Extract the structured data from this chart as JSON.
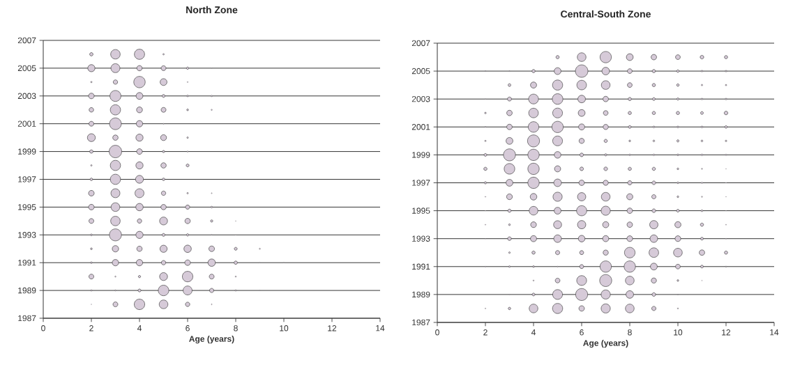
{
  "chart_data": [
    {
      "type": "bubble",
      "title": "North Zone",
      "xlabel": "Age (years)",
      "color": "#d6cad8",
      "marker": "circle",
      "grid": "y",
      "xlim": [
        0,
        14
      ],
      "xticks": [
        0,
        2,
        4,
        6,
        8,
        10,
        12,
        14
      ],
      "ylim": [
        1987,
        2007
      ],
      "yticks": [
        1987,
        1989,
        1991,
        1993,
        1995,
        1997,
        1999,
        2001,
        2003,
        2005,
        2007
      ],
      "x": [
        2,
        3,
        4,
        5,
        2,
        3,
        4,
        5,
        6,
        7,
        2,
        3,
        4,
        5,
        6,
        2,
        3,
        4,
        5,
        6,
        7,
        2,
        3,
        4,
        5,
        6,
        7,
        2,
        3,
        4,
        5,
        2,
        3,
        4,
        5,
        6,
        2,
        3,
        4,
        5,
        6,
        2,
        3,
        4,
        5,
        6,
        2,
        3,
        4,
        5,
        2,
        3,
        4,
        5,
        6,
        7,
        2,
        3,
        4,
        5,
        6,
        7,
        2,
        3,
        4,
        5,
        6,
        7,
        8,
        2,
        3,
        4,
        5,
        6,
        7,
        8,
        2,
        3,
        4,
        5,
        6,
        7,
        8,
        9,
        2,
        3,
        4,
        5,
        6,
        7,
        8,
        9,
        10,
        2,
        3,
        4,
        5,
        6,
        7,
        8,
        2,
        3,
        4,
        5,
        6,
        7,
        8,
        9,
        2,
        3,
        4,
        5,
        6,
        7
      ],
      "values": [
        2006,
        2006,
        2006,
        2006,
        2005,
        2005,
        2005,
        2005,
        2005,
        2005,
        2004,
        2004,
        2004,
        2004,
        2004,
        2003,
        2003,
        2003,
        2003,
        2003,
        2003,
        2002,
        2002,
        2002,
        2002,
        2002,
        2002,
        2001,
        2001,
        2001,
        2001,
        2000,
        2000,
        2000,
        2000,
        2000,
        1999,
        1999,
        1999,
        1999,
        1999,
        1998,
        1998,
        1998,
        1998,
        1998,
        1997,
        1997,
        1997,
        1997,
        1996,
        1996,
        1996,
        1996,
        1996,
        1996,
        1995,
        1995,
        1995,
        1995,
        1995,
        1995,
        1994,
        1994,
        1994,
        1994,
        1994,
        1994,
        1994,
        1993,
        1993,
        1993,
        1993,
        1993,
        1993,
        1993,
        1992,
        1992,
        1992,
        1992,
        1992,
        1992,
        1992,
        1992,
        1991,
        1991,
        1991,
        1991,
        1991,
        1991,
        1991,
        1991,
        1991,
        1990,
        1990,
        1990,
        1990,
        1990,
        1990,
        1990,
        1989,
        1989,
        1989,
        1989,
        1989,
        1989,
        1989,
        1989,
        1988,
        1988,
        1988,
        1988,
        1988,
        1988
      ],
      "sizes": [
        0.087,
        0.59,
        0.68,
        0.02,
        0.35,
        0.53,
        0.2,
        0.17,
        0.045,
        0.005,
        0.02,
        0.14,
        0.84,
        0.32,
        0.009,
        0.22,
        0.78,
        0.32,
        0.067,
        0.027,
        0.02,
        0.15,
        0.68,
        0.24,
        0.17,
        0.031,
        0.014,
        0.17,
        0.89,
        0.28,
        0.009,
        0.42,
        0.2,
        0.35,
        0.24,
        0.023,
        0.087,
        1,
        0.22,
        0.045,
        0.014,
        0.02,
        0.68,
        0.35,
        0.2,
        0.067,
        0.055,
        0.68,
        0.42,
        0.055,
        0.22,
        0.53,
        0.53,
        0.14,
        0.02,
        0.009,
        0.22,
        0.5,
        0.37,
        0.2,
        0.13,
        0.027,
        0.17,
        0.59,
        0.14,
        0.42,
        0.2,
        0.045,
        0.005,
        0.031,
        0.93,
        0.35,
        0.067,
        0.045,
        0.009,
        0.005,
        0.031,
        0.28,
        0.2,
        0.35,
        0.37,
        0.22,
        0.067,
        0.014,
        0.027,
        0.28,
        0.28,
        0.14,
        0.22,
        0.37,
        0.087,
        0.005,
        0.005,
        0.17,
        0.014,
        0.045,
        0.42,
        0.72,
        0.17,
        0.014,
        0.02,
        0.014,
        0.067,
        0.72,
        0.53,
        0.13,
        0.02,
        0.005,
        0.005,
        0.17,
        0.72,
        0.5,
        0.14,
        0.009
      ]
    },
    {
      "type": "bubble",
      "title": "Central-South Zone",
      "xlabel": "Age (years)",
      "color": "#d6cad8",
      "marker": "circle",
      "grid": "y",
      "xlim": [
        0,
        14
      ],
      "xticks": [
        0,
        2,
        4,
        6,
        8,
        10,
        12,
        14
      ],
      "ylim": [
        1987,
        2007
      ],
      "yticks": [
        1987,
        1989,
        1991,
        1993,
        1995,
        1997,
        1999,
        2001,
        2003,
        2005,
        2007
      ],
      "x": [
        5,
        6,
        7,
        8,
        9,
        10,
        11,
        12,
        2,
        3,
        4,
        5,
        6,
        7,
        8,
        9,
        10,
        11,
        12,
        3,
        4,
        5,
        6,
        7,
        8,
        9,
        10,
        11,
        12,
        2,
        3,
        4,
        5,
        6,
        7,
        8,
        9,
        10,
        11,
        12,
        2,
        3,
        4,
        5,
        6,
        7,
        8,
        9,
        10,
        11,
        12,
        2,
        3,
        4,
        5,
        6,
        7,
        8,
        9,
        10,
        11,
        12,
        2,
        3,
        4,
        5,
        6,
        7,
        8,
        9,
        10,
        11,
        12,
        2,
        3,
        4,
        5,
        6,
        7,
        8,
        9,
        10,
        11,
        12,
        2,
        3,
        4,
        5,
        6,
        7,
        8,
        9,
        10,
        11,
        12,
        2,
        3,
        4,
        5,
        6,
        7,
        8,
        9,
        10,
        11,
        12,
        2,
        3,
        4,
        5,
        6,
        7,
        8,
        9,
        10,
        11,
        12,
        2,
        3,
        4,
        5,
        6,
        7,
        8,
        9,
        10,
        11,
        12,
        2,
        3,
        4,
        5,
        6,
        7,
        8,
        9,
        10,
        11,
        12,
        2,
        3,
        4,
        5,
        6,
        7,
        8,
        9,
        10,
        11,
        12,
        3,
        4,
        5,
        6,
        7,
        8,
        9,
        10,
        11,
        12,
        2,
        3,
        4,
        5,
        6,
        7,
        8,
        9,
        10,
        11,
        12,
        4,
        5,
        6,
        7,
        8,
        9,
        10,
        11,
        3,
        4,
        5,
        6,
        7,
        8,
        9,
        10,
        2,
        3,
        4,
        5,
        6,
        7,
        8,
        9,
        10
      ],
      "values": [
        2006,
        2006,
        2006,
        2006,
        2006,
        2006,
        2006,
        2006,
        2005,
        2005,
        2005,
        2005,
        2005,
        2005,
        2005,
        2005,
        2005,
        2005,
        2005,
        2004,
        2004,
        2004,
        2004,
        2004,
        2004,
        2004,
        2004,
        2004,
        2004,
        2003,
        2003,
        2003,
        2003,
        2003,
        2003,
        2003,
        2003,
        2003,
        2003,
        2003,
        2002,
        2002,
        2002,
        2002,
        2002,
        2002,
        2002,
        2002,
        2002,
        2002,
        2002,
        2001,
        2001,
        2001,
        2001,
        2001,
        2001,
        2001,
        2001,
        2001,
        2001,
        2001,
        2000,
        2000,
        2000,
        2000,
        2000,
        2000,
        2000,
        2000,
        2000,
        2000,
        2000,
        1999,
        1999,
        1999,
        1999,
        1999,
        1999,
        1999,
        1999,
        1999,
        1999,
        1999,
        1998,
        1998,
        1998,
        1998,
        1998,
        1998,
        1998,
        1998,
        1998,
        1998,
        1998,
        1997,
        1997,
        1997,
        1997,
        1997,
        1997,
        1997,
        1997,
        1997,
        1997,
        1997,
        1996,
        1996,
        1996,
        1996,
        1996,
        1996,
        1996,
        1996,
        1996,
        1996,
        1996,
        1995,
        1995,
        1995,
        1995,
        1995,
        1995,
        1995,
        1995,
        1995,
        1995,
        1995,
        1994,
        1994,
        1994,
        1994,
        1994,
        1994,
        1994,
        1994,
        1994,
        1994,
        1994,
        1993,
        1993,
        1993,
        1993,
        1993,
        1993,
        1993,
        1993,
        1993,
        1993,
        1993,
        1992,
        1992,
        1992,
        1992,
        1992,
        1992,
        1992,
        1992,
        1992,
        1992,
        1991,
        1991,
        1991,
        1991,
        1991,
        1991,
        1991,
        1991,
        1991,
        1991,
        1991,
        1990,
        1990,
        1990,
        1990,
        1990,
        1990,
        1990,
        1990,
        1989,
        1989,
        1989,
        1989,
        1989,
        1989,
        1989,
        1989,
        1988,
        1988,
        1988,
        1988,
        1988,
        1988,
        1988,
        1988,
        1988
      ],
      "sizes": [
        0.081,
        0.5,
        0.83,
        0.32,
        0.21,
        0.16,
        0.1,
        0.081,
        0.008,
        0.008,
        0.081,
        0.32,
        1,
        0.39,
        0.16,
        0.081,
        0.052,
        0.025,
        0.025,
        0.063,
        0.26,
        0.67,
        0.6,
        0.5,
        0.16,
        0.081,
        0.052,
        0.019,
        0.019,
        0.005,
        0.12,
        0.63,
        0.73,
        0.39,
        0.21,
        0.081,
        0.063,
        0.042,
        0.025,
        0.025,
        0.025,
        0.21,
        0.6,
        0.63,
        0.32,
        0.16,
        0.081,
        0.081,
        0.081,
        0.063,
        0.1,
        0.013,
        0.21,
        0.73,
        0.83,
        0.26,
        0.19,
        0.063,
        0.029,
        0.029,
        0.029,
        0.052,
        0.019,
        0.32,
        0.93,
        0.63,
        0.19,
        0.081,
        0.029,
        0.029,
        0.042,
        0.029,
        0.025,
        0.063,
        0.93,
        0.83,
        0.3,
        0.1,
        0.042,
        0.025,
        0.025,
        0.029,
        0.025,
        0.019,
        0.081,
        0.73,
        0.83,
        0.26,
        0.1,
        0.1,
        0.081,
        0.081,
        0.029,
        0.013,
        0.005,
        0.042,
        0.32,
        0.83,
        0.39,
        0.21,
        0.19,
        0.13,
        0.1,
        0.029,
        0.019,
        0.008,
        0.008,
        0.23,
        0.3,
        0.55,
        0.46,
        0.5,
        0.26,
        0.13,
        0.029,
        0.013,
        0.005,
        0.005,
        0.081,
        0.5,
        0.32,
        0.67,
        0.55,
        0.21,
        0.1,
        0.063,
        0.029,
        0.005,
        0.008,
        0.029,
        0.23,
        0.43,
        0.46,
        0.26,
        0.21,
        0.46,
        0.26,
        0.081,
        0.008,
        0.005,
        0.1,
        0.26,
        0.39,
        0.3,
        0.26,
        0.23,
        0.39,
        0.23,
        0.063,
        0.008,
        0.025,
        0.081,
        0.13,
        0.12,
        0.19,
        0.73,
        0.6,
        0.5,
        0.21,
        0.081,
        0.008,
        0.025,
        0.029,
        0.008,
        0.12,
        0.83,
        0.83,
        0.32,
        0.16,
        0.063,
        0.013,
        0.013,
        0.16,
        0.63,
        0.93,
        0.5,
        0.19,
        0.029,
        0.005,
        0.005,
        0.063,
        0.63,
        0.93,
        0.55,
        0.39,
        0.1,
        0.008,
        0.008,
        0.052,
        0.5,
        0.67,
        0.21,
        0.55,
        0.5,
        0.13,
        0.013
      ]
    }
  ]
}
